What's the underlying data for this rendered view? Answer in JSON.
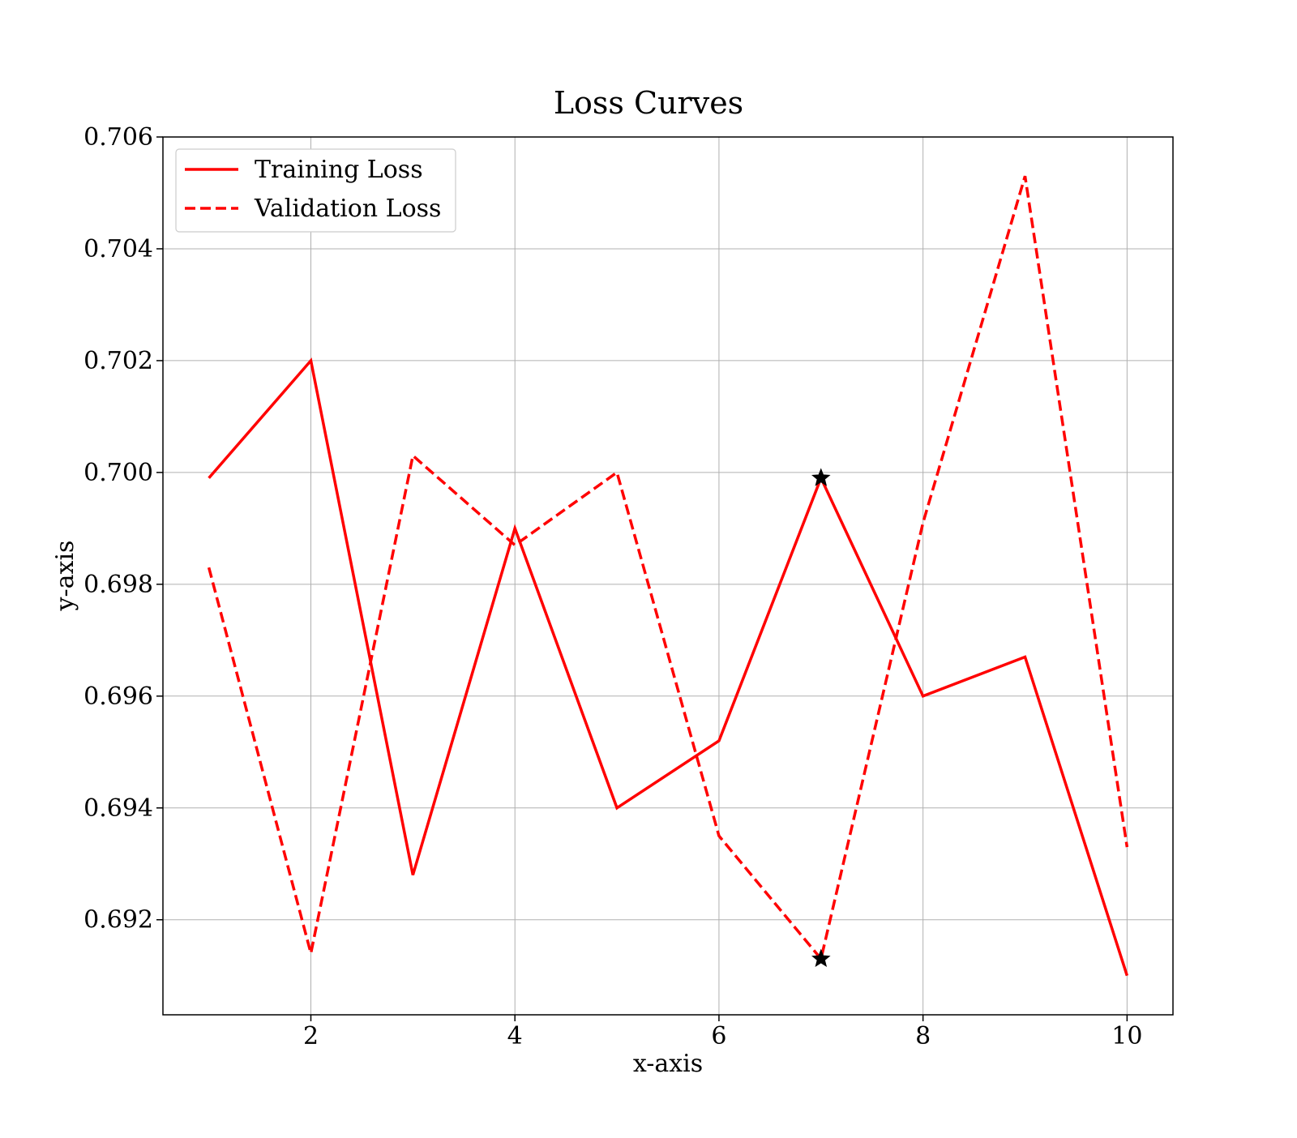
{
  "chart_data": {
    "type": "line",
    "title": "Loss Curves",
    "xlabel": "x-axis",
    "ylabel": "y-axis",
    "xlim": [
      0.55,
      10.45
    ],
    "ylim": [
      0.6903,
      0.706
    ],
    "x_ticks": [
      2,
      4,
      6,
      8,
      10
    ],
    "y_ticks": [
      0.692,
      0.694,
      0.696,
      0.698,
      0.7,
      0.702,
      0.704,
      0.706
    ],
    "x_tick_labels": [
      "2",
      "4",
      "6",
      "8",
      "10"
    ],
    "y_tick_labels": [
      "0.692",
      "0.694",
      "0.696",
      "0.698",
      "0.700",
      "0.702",
      "0.704",
      "0.706"
    ],
    "grid": true,
    "legend_position": "top-left",
    "x": [
      1,
      2,
      3,
      4,
      5,
      6,
      7,
      8,
      9,
      10
    ],
    "series": [
      {
        "name": "Training Loss",
        "values": [
          0.6999,
          0.702,
          0.6928,
          0.699,
          0.694,
          0.6952,
          0.6999,
          0.696,
          0.6967,
          0.691
        ],
        "color": "#ff0000",
        "line_style": "solid"
      },
      {
        "name": "Validation Loss",
        "values": [
          0.6983,
          0.6914,
          0.7003,
          0.6987,
          0.7,
          0.6935,
          0.6913,
          0.6991,
          0.7053,
          0.6933
        ],
        "color": "#ff0000",
        "line_style": "dashed"
      }
    ],
    "markers": [
      {
        "series": "Training Loss",
        "x": 7,
        "y": 0.6999,
        "shape": "star",
        "color": "#000000"
      },
      {
        "series": "Validation Loss",
        "x": 7,
        "y": 0.6913,
        "shape": "star",
        "color": "#000000"
      }
    ]
  }
}
